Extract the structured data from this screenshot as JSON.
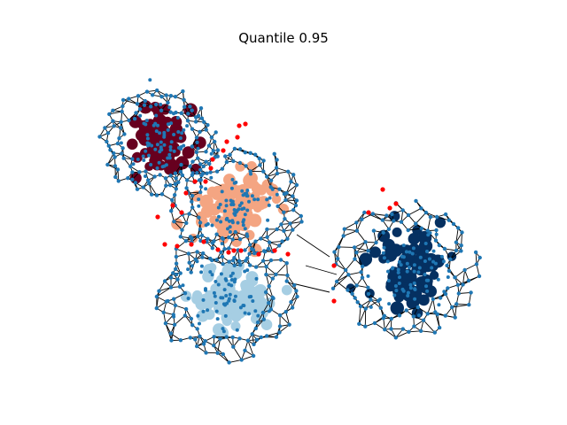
{
  "figure": {
    "title": "Quantile 0.95"
  },
  "colors": {
    "background": "#ffffff",
    "edge": "#000000",
    "node_outline": "#1f77b4",
    "cluster_dark_red": "#67001f",
    "cluster_peach": "#f4a582",
    "cluster_light_blue": "#a6cee3",
    "cluster_dark_blue": "#053061",
    "outlier_red": "#ff0000"
  },
  "graph": {
    "type": "network",
    "clusters": [
      "dark-red",
      "peach",
      "light-blue",
      "dark-blue"
    ],
    "outlier_color": "red",
    "quantile": 0.95
  }
}
